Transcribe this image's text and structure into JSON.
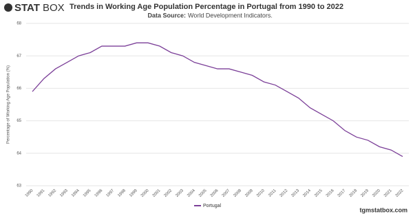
{
  "logo": {
    "bold": "STAT",
    "light": "BOX"
  },
  "footer": "tgmstatbox.com",
  "chart_data": {
    "type": "line",
    "title": "Trends in Working Age Population Percentage in Portugal from 1990 to 2022",
    "subtitle_label": "Data Source:",
    "subtitle": "World Development Indicators.",
    "y_label": "Percentage of Working Age Population (%)",
    "categories": [
      "1990",
      "1991",
      "1992",
      "1993",
      "1994",
      "1995",
      "1996",
      "1997",
      "1998",
      "1999",
      "2000",
      "2001",
      "2002",
      "2003",
      "2004",
      "2005",
      "2006",
      "2007",
      "2008",
      "2009",
      "2010",
      "2011",
      "2012",
      "2013",
      "2014",
      "2015",
      "2016",
      "2017",
      "2018",
      "2019",
      "2020",
      "2021",
      "2022"
    ],
    "series": [
      {
        "name": "Portugal",
        "color": "#7b3f98",
        "values": [
          65.9,
          66.3,
          66.6,
          66.8,
          67.0,
          67.1,
          67.3,
          67.3,
          67.3,
          67.4,
          67.4,
          67.3,
          67.1,
          67.0,
          66.8,
          66.7,
          66.6,
          66.6,
          66.5,
          66.4,
          66.2,
          66.1,
          65.9,
          65.7,
          65.4,
          65.2,
          65.0,
          64.7,
          64.5,
          64.4,
          64.2,
          64.1,
          63.9
        ]
      }
    ],
    "ylim": [
      63,
      68
    ],
    "yticks": [
      63,
      64,
      65,
      66,
      67,
      68
    ],
    "grid": true,
    "legend": "bottom"
  }
}
